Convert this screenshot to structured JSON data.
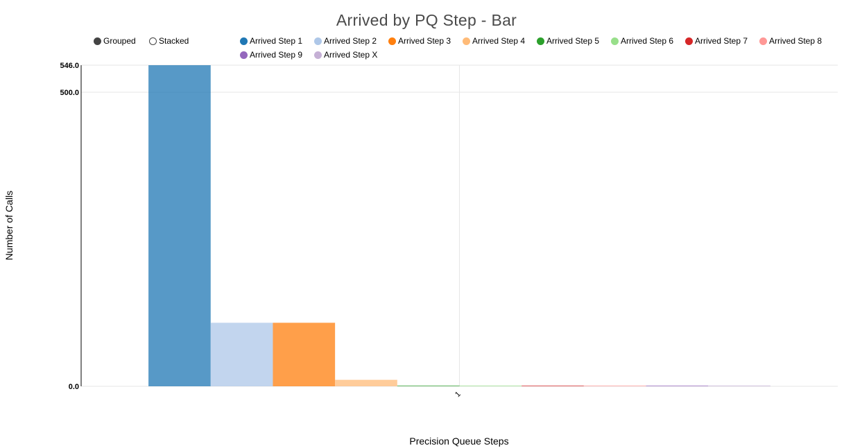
{
  "chart_data": {
    "type": "bar",
    "title": "Arrived by PQ Step - Bar",
    "xlabel": "Precision Queue Steps",
    "ylabel": "Number of Calls",
    "categories": [
      "1"
    ],
    "y_ticks": [
      "546.0",
      "500.0",
      "0.0"
    ],
    "ylim": [
      0,
      546
    ],
    "mode": "grouped",
    "series": [
      {
        "name": "Arrived Step 1",
        "color": "#1f77b4",
        "values": [
          546
        ]
      },
      {
        "name": "Arrived Step 2",
        "color": "#aec7e8",
        "values": [
          108
        ]
      },
      {
        "name": "Arrived Step 3",
        "color": "#ff7f0e",
        "values": [
          108
        ]
      },
      {
        "name": "Arrived Step 4",
        "color": "#ffbb78",
        "values": [
          11
        ]
      },
      {
        "name": "Arrived Step 5",
        "color": "#2ca02c",
        "values": [
          1
        ]
      },
      {
        "name": "Arrived Step 6",
        "color": "#98df8a",
        "values": [
          0
        ]
      },
      {
        "name": "Arrived Step 7",
        "color": "#d62728",
        "values": [
          1
        ]
      },
      {
        "name": "Arrived Step 8",
        "color": "#ff9896",
        "values": [
          0
        ]
      },
      {
        "name": "Arrived Step 9",
        "color": "#9467bd",
        "values": [
          0
        ]
      },
      {
        "name": "Arrived Step X",
        "color": "#c5b0d5",
        "values": [
          0
        ]
      }
    ],
    "grid": true,
    "legend_position": "top"
  },
  "controls": {
    "grouped_label": "Grouped",
    "stacked_label": "Stacked",
    "selected": "Grouped"
  }
}
